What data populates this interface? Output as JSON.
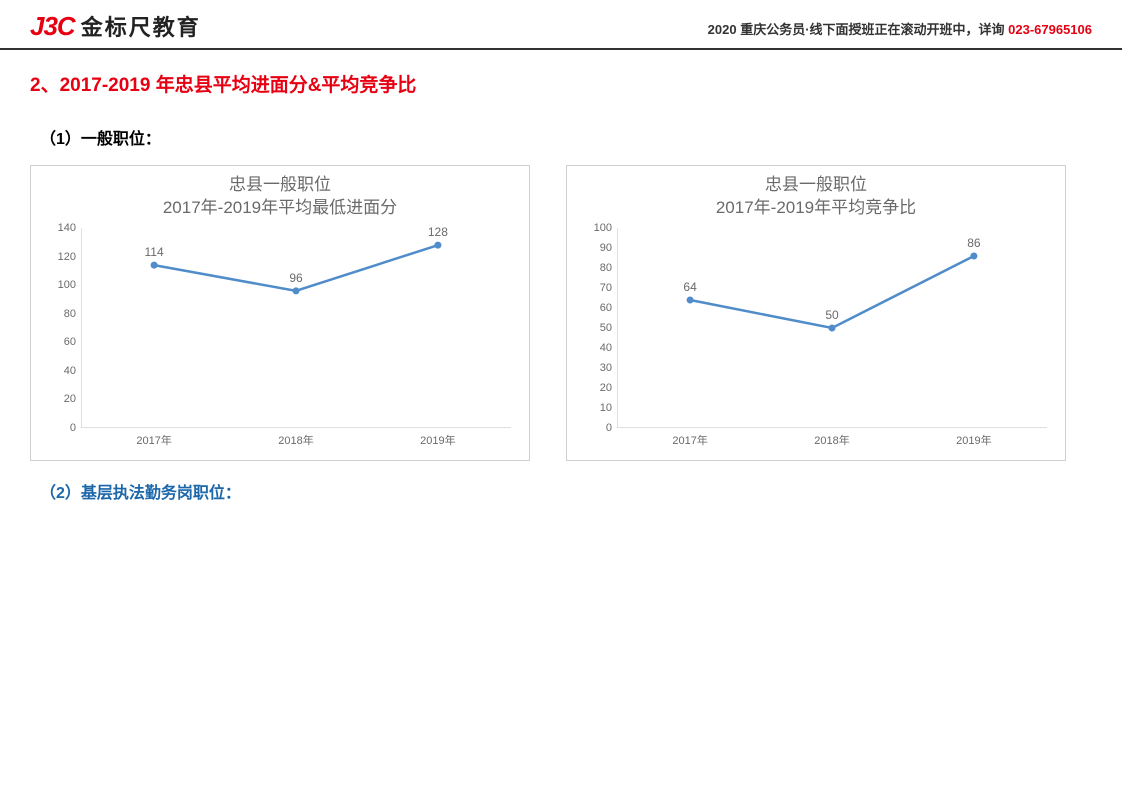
{
  "header": {
    "logo_mark": "J3C",
    "logo_text": "金标尺教育",
    "notice_prefix": "2020 重庆公务员·线下面授班正在滚动开班中，详询 ",
    "phone": "023-67965106"
  },
  "section_title": "2、2017-2019 年忠县平均进面分&平均竞争比",
  "sub_title_1": "（1）一般职位：",
  "sub_title_2": "（2）基层执法勤务岗职位：",
  "chart_left": {
    "type": "line",
    "title_line1": "忠县一般职位",
    "title_line2": "2017年-2019年平均最低进面分",
    "categories": [
      "2017年",
      "2018年",
      "2019年"
    ],
    "values": [
      114,
      96,
      128
    ],
    "ylim": [
      0,
      140
    ],
    "ytick_step": 20,
    "line_color": "#4f8cc9",
    "text_color": "#6a6a6a",
    "axis_color": "#bfbfbf",
    "background_color": "#ffffff",
    "border_color": "#d0d0d0",
    "x_positions_pct": [
      17,
      50,
      83
    ]
  },
  "chart_right": {
    "type": "line",
    "title_line1": "忠县一般职位",
    "title_line2": "2017年-2019年平均竞争比",
    "categories": [
      "2017年",
      "2018年",
      "2019年"
    ],
    "values": [
      64,
      50,
      86
    ],
    "ylim": [
      0,
      100
    ],
    "ytick_step": 10,
    "line_color": "#4f8cc9",
    "text_color": "#6a6a6a",
    "axis_color": "#bfbfbf",
    "background_color": "#ffffff",
    "border_color": "#d0d0d0",
    "x_positions_pct": [
      17,
      50,
      83
    ]
  }
}
